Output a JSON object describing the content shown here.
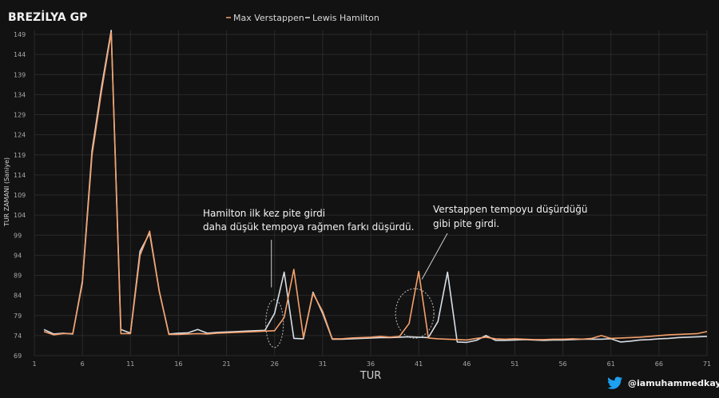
{
  "chart_data": {
    "type": "line",
    "title": "BREZİLYA GP",
    "xlabel": "TUR",
    "ylabel": "TUR ZAMANI (Saniye)",
    "xlim": [
      1,
      71
    ],
    "ylim": [
      69,
      150
    ],
    "x_ticks": [
      1,
      6,
      11,
      16,
      21,
      26,
      31,
      36,
      41,
      46,
      51,
      56,
      61,
      66,
      71
    ],
    "y_ticks": [
      69,
      74,
      79,
      84,
      89,
      94,
      99,
      104,
      109,
      114,
      119,
      124,
      129,
      134,
      139,
      144,
      149
    ],
    "grid": true,
    "legend_position": "top-center",
    "x": [
      2,
      3,
      4,
      5,
      6,
      7,
      8,
      9,
      10,
      11,
      12,
      13,
      14,
      15,
      16,
      17,
      18,
      19,
      20,
      21,
      22,
      23,
      24,
      25,
      26,
      27,
      28,
      29,
      30,
      31,
      32,
      33,
      34,
      35,
      36,
      37,
      38,
      39,
      40,
      41,
      42,
      43,
      44,
      45,
      46,
      47,
      48,
      49,
      50,
      51,
      52,
      53,
      54,
      55,
      56,
      57,
      58,
      59,
      60,
      61,
      62,
      63,
      64,
      65,
      66,
      67,
      68,
      69,
      70,
      71
    ],
    "series": [
      {
        "name": "Max Verstappen",
        "color": "#f4a06b",
        "values": [
          75,
          74.2,
          74.5,
          74.5,
          87,
          119,
          135,
          149.5,
          74.5,
          74.5,
          94,
          100,
          85,
          74.3,
          74.3,
          74.4,
          74.5,
          74.4,
          74.6,
          74.7,
          74.8,
          74.9,
          75,
          75.1,
          75.2,
          78.5,
          90.5,
          73.5,
          84.5,
          80,
          73.2,
          73.2,
          73.4,
          73.5,
          73.6,
          73.8,
          73.6,
          73.8,
          77,
          90,
          73.4,
          73.2,
          73.1,
          73,
          72.9,
          73.3,
          73.6,
          73.2,
          73.1,
          73.2,
          73.1,
          73,
          73,
          73.1,
          73.1,
          73.2,
          73.1,
          73.3,
          74,
          73.3,
          73.4,
          73.5,
          73.6,
          73.8,
          74,
          74.2,
          74.3,
          74.4,
          74.5,
          75
        ]
      },
      {
        "name": "Lewis Hamilton",
        "color": "#d8dee6",
        "values": [
          75.5,
          74.4,
          74.6,
          74.4,
          87.5,
          120,
          136,
          150,
          75.5,
          74.6,
          95,
          99.5,
          85,
          74.4,
          74.6,
          74.7,
          75.5,
          74.6,
          74.8,
          74.9,
          75,
          75.1,
          75.2,
          75.3,
          79.5,
          89.8,
          73.3,
          73.2,
          84.8,
          79.5,
          73.1,
          73.1,
          73.2,
          73.3,
          73.4,
          73.5,
          73.5,
          73.6,
          73.7,
          73.6,
          73.5,
          77.5,
          89.8,
          72.4,
          72.3,
          72.8,
          74,
          72.8,
          72.8,
          72.9,
          73,
          72.9,
          72.8,
          72.9,
          72.9,
          73,
          73.1,
          73.1,
          73.1,
          73.2,
          72.4,
          72.6,
          72.9,
          73,
          73.2,
          73.3,
          73.5,
          73.6,
          73.7,
          73.8
        ]
      }
    ],
    "annotations": [
      {
        "lines": [
          "Hamilton ilk kez pite girdi",
          "daha düşük tempoya rağmen farkı düşürdü."
        ],
        "lap": 26
      },
      {
        "lines": [
          "Verstappen tempoyu düşürdüğü",
          "gibi pite girdi."
        ],
        "lap": 41
      }
    ],
    "watermark": "@iamuhammedkaya",
    "watermark_icon": "twitter-bird-icon"
  }
}
